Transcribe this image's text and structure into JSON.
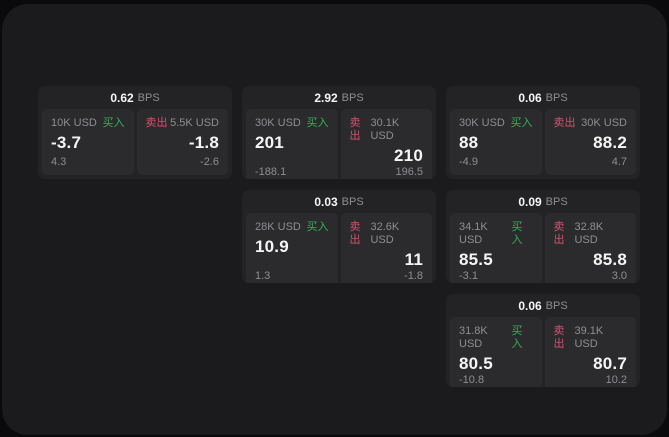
{
  "labels": {
    "buy": "买入",
    "sell": "卖出",
    "bps_suffix": "BPS"
  },
  "colors": {
    "page_bg": "#0a0a0c",
    "panel_bg": "#1b1b1d",
    "card_bg": "#232325",
    "tile_bg": "#2b2b2d",
    "text_primary": "#f5f5f5",
    "text_muted": "#8e8e93",
    "buy_green": "#31b158",
    "sell_red": "#d84f6e"
  },
  "cards": [
    {
      "bps": "0.62",
      "buy": {
        "size": "10K USD",
        "value": "-3.7",
        "change": "4.3"
      },
      "sell": {
        "size": "5.5K USD",
        "value": "-1.8",
        "change": "-2.6"
      }
    },
    {
      "bps": "2.92",
      "buy": {
        "size": "30K USD",
        "value": "201",
        "change": "-188.1"
      },
      "sell": {
        "size": "30.1K USD",
        "value": "210",
        "change": "196.5"
      }
    },
    {
      "bps": "0.06",
      "buy": {
        "size": "30K USD",
        "value": "88",
        "change": "-4.9"
      },
      "sell": {
        "size": "30K USD",
        "value": "88.2",
        "change": "4.7"
      }
    },
    {
      "bps": "0.03",
      "buy": {
        "size": "28K USD",
        "value": "10.9",
        "change": "1.3"
      },
      "sell": {
        "size": "32.6K USD",
        "value": "11",
        "change": "-1.8"
      }
    },
    {
      "bps": "0.09",
      "buy": {
        "size": "34.1K USD",
        "value": "85.5",
        "change": "-3.1"
      },
      "sell": {
        "size": "32.8K USD",
        "value": "85.8",
        "change": "3.0"
      }
    },
    {
      "bps": "0.06",
      "buy": {
        "size": "31.8K USD",
        "value": "80.5",
        "change": "-10.8"
      },
      "sell": {
        "size": "39.1K USD",
        "value": "80.7",
        "change": "10.2"
      }
    }
  ]
}
